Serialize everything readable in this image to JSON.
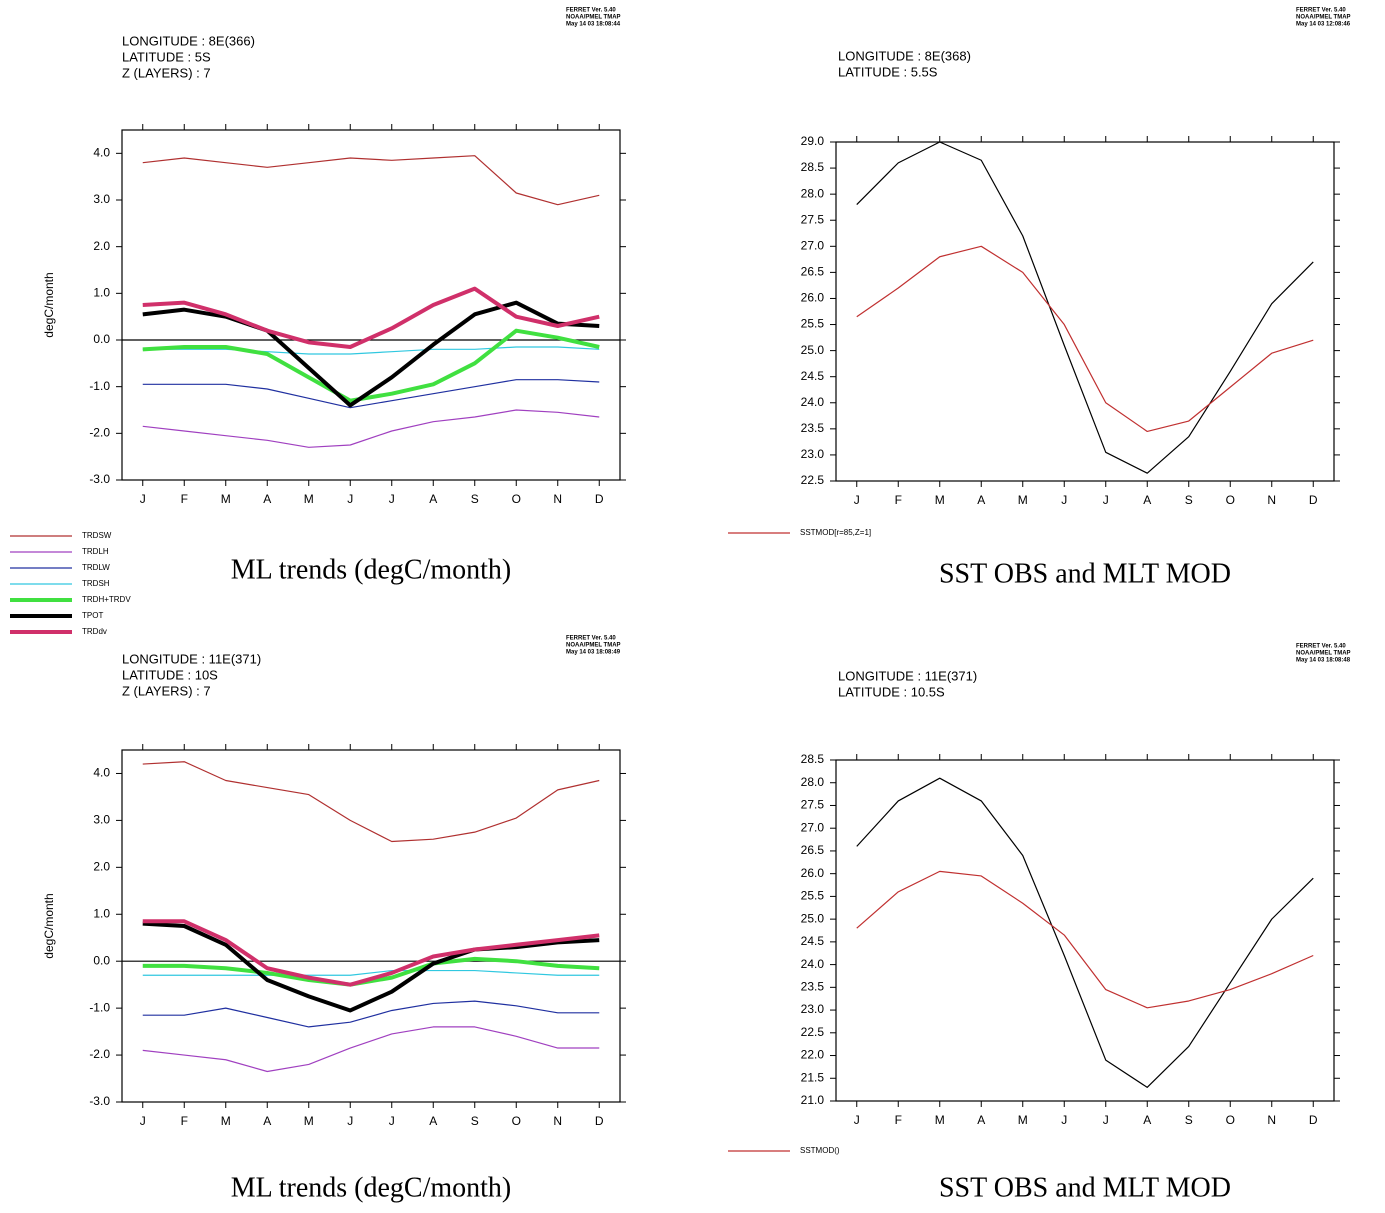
{
  "chart_data": [
    {
      "type": "line",
      "info": [
        "LONGITUDE : 8E(366)",
        "LATITUDE : 5S",
        "Z (LAYERS) : 7"
      ],
      "stamp": [
        "FERRET Ver. 5.40",
        "NOAA/PMEL TMAP",
        "May 14 03 18:08:44"
      ],
      "title": "ML trends (degC/month)",
      "y_label": "degC/month",
      "categories": [
        "J",
        "F",
        "M",
        "A",
        "M",
        "J",
        "J",
        "A",
        "S",
        "O",
        "N",
        "D"
      ],
      "ylim": [
        -3,
        4.5
      ],
      "yticks": [
        {
          "value": 4,
          "label": "4.0"
        },
        {
          "value": 3,
          "label": "3.0"
        },
        {
          "value": 2,
          "label": "2.0"
        },
        {
          "value": 1,
          "label": "1.0"
        },
        {
          "value": 0,
          "label": "0.0"
        },
        {
          "value": -1,
          "label": "-1.0"
        },
        {
          "value": -2,
          "label": "-2.0"
        },
        {
          "value": -3,
          "label": "-3.0"
        }
      ],
      "zero_line": true,
      "legend": "bottom-left",
      "series": [
        {
          "name": "TRDSW",
          "color": "#b03030",
          "line_width": 1.2,
          "values": [
            3.8,
            3.9,
            3.8,
            3.7,
            3.8,
            3.9,
            3.85,
            3.9,
            3.95,
            3.15,
            2.9,
            3.1
          ]
        },
        {
          "name": "TRDLH",
          "color": "#a040c0",
          "line_width": 1.2,
          "values": [
            -1.85,
            -1.95,
            -2.05,
            -2.15,
            -2.3,
            -2.25,
            -1.95,
            -1.75,
            -1.65,
            -1.5,
            -1.55,
            -1.65
          ]
        },
        {
          "name": "TRDLW",
          "color": "#2030a0",
          "line_width": 1.2,
          "values": [
            -0.95,
            -0.95,
            -0.95,
            -1.05,
            -1.25,
            -1.45,
            -1.3,
            -1.15,
            -1.0,
            -0.85,
            -0.85,
            -0.9
          ]
        },
        {
          "name": "TRDSH",
          "color": "#30c8e0",
          "line_width": 1.2,
          "values": [
            -0.2,
            -0.2,
            -0.2,
            -0.25,
            -0.3,
            -0.3,
            -0.25,
            -0.2,
            -0.2,
            -0.15,
            -0.15,
            -0.2
          ]
        },
        {
          "name": "TRDH+TRDV",
          "color": "#40e040",
          "line_width": 4,
          "values": [
            -0.2,
            -0.15,
            -0.15,
            -0.3,
            -0.8,
            -1.3,
            -1.15,
            -0.95,
            -0.5,
            0.2,
            0.05,
            -0.15
          ]
        },
        {
          "name": "TPOT",
          "color": "#000000",
          "line_width": 4,
          "values": [
            0.55,
            0.65,
            0.5,
            0.2,
            -0.6,
            -1.4,
            -0.8,
            -0.1,
            0.55,
            0.8,
            0.35,
            0.3
          ]
        },
        {
          "name": "TRDdv",
          "color": "#d0306a",
          "line_width": 4,
          "values": [
            0.75,
            0.8,
            0.55,
            0.2,
            -0.05,
            -0.15,
            0.25,
            0.75,
            1.1,
            0.5,
            0.3,
            0.5
          ]
        }
      ]
    },
    {
      "type": "line",
      "info": [
        "LONGITUDE : 8E(368)",
        "LATITUDE : 5.5S"
      ],
      "stamp": [
        "FERRET Ver. 5.40",
        "NOAA/PMEL TMAP",
        "May 14 03 12:08:46"
      ],
      "title": "SST OBS and MLT MOD",
      "categories": [
        "J",
        "F",
        "M",
        "A",
        "M",
        "J",
        "J",
        "A",
        "S",
        "O",
        "N",
        "D"
      ],
      "ylim": [
        22.5,
        29
      ],
      "yticks": [
        {
          "value": 29,
          "label": "29.0"
        },
        28.5,
        {
          "value": 28,
          "label": "28.0"
        },
        27.5,
        {
          "value": 27,
          "label": "27.0"
        },
        26.5,
        {
          "value": 26,
          "label": "26.0"
        },
        25.5,
        {
          "value": 25,
          "label": "25.0"
        },
        24.5,
        {
          "value": 24,
          "label": "24.0"
        },
        23.5,
        {
          "value": 23,
          "label": "23.0"
        },
        22.5
      ],
      "zero_line": false,
      "legend": "bottom-left",
      "series": [
        {
          "color": "#000000",
          "line_width": 1.2,
          "values": [
            27.8,
            28.6,
            29.0,
            28.65,
            27.2,
            25.1,
            23.05,
            22.65,
            23.35,
            24.6,
            25.9,
            26.7
          ]
        },
        {
          "name": "SSTMOD[r=85,Z=1]",
          "color": "#c03030",
          "line_width": 1.2,
          "values": [
            25.65,
            26.2,
            26.8,
            27.0,
            26.5,
            25.5,
            24.0,
            23.45,
            23.65,
            24.3,
            24.95,
            25.2
          ]
        }
      ]
    },
    {
      "type": "line",
      "info": [
        "LONGITUDE : 11E(371)",
        "LATITUDE : 10S",
        "Z (LAYERS) : 7"
      ],
      "stamp": [
        "FERRET Ver. 5.40",
        "NOAA/PMEL TMAP",
        "May 14 03 18:08:49"
      ],
      "title": "ML trends (degC/month)",
      "y_label": "degC/month",
      "categories": [
        "J",
        "F",
        "M",
        "A",
        "M",
        "J",
        "J",
        "A",
        "S",
        "O",
        "N",
        "D"
      ],
      "ylim": [
        -3,
        4.5
      ],
      "yticks": [
        {
          "value": 4,
          "label": "4.0"
        },
        {
          "value": 3,
          "label": "3.0"
        },
        {
          "value": 2,
          "label": "2.0"
        },
        {
          "value": 1,
          "label": "1.0"
        },
        {
          "value": 0,
          "label": "0.0"
        },
        {
          "value": -1,
          "label": "-1.0"
        },
        {
          "value": -2,
          "label": "-2.0"
        },
        {
          "value": -3,
          "label": "-3.0"
        }
      ],
      "zero_line": true,
      "series": [
        {
          "color": "#b03030",
          "line_width": 1.2,
          "values": [
            4.2,
            4.25,
            3.85,
            3.7,
            3.55,
            3.0,
            2.55,
            2.6,
            2.75,
            3.05,
            3.65,
            3.85
          ]
        },
        {
          "color": "#a040c0",
          "line_width": 1.2,
          "values": [
            -1.9,
            -2.0,
            -2.1,
            -2.35,
            -2.2,
            -1.85,
            -1.55,
            -1.4,
            -1.4,
            -1.6,
            -1.85,
            -1.85
          ]
        },
        {
          "color": "#2030a0",
          "line_width": 1.2,
          "values": [
            -1.15,
            -1.15,
            -1.0,
            -1.2,
            -1.4,
            -1.3,
            -1.05,
            -0.9,
            -0.85,
            -0.95,
            -1.1,
            -1.1
          ]
        },
        {
          "color": "#30c8e0",
          "line_width": 1.2,
          "values": [
            -0.3,
            -0.3,
            -0.3,
            -0.3,
            -0.3,
            -0.3,
            -0.2,
            -0.2,
            -0.2,
            -0.25,
            -0.3,
            -0.3
          ]
        },
        {
          "color": "#40e040",
          "line_width": 4,
          "values": [
            -0.1,
            -0.1,
            -0.15,
            -0.25,
            -0.4,
            -0.5,
            -0.35,
            -0.05,
            0.05,
            0.0,
            -0.1,
            -0.15
          ]
        },
        {
          "color": "#000000",
          "line_width": 4,
          "values": [
            0.8,
            0.75,
            0.35,
            -0.4,
            -0.75,
            -1.05,
            -0.65,
            -0.05,
            0.25,
            0.3,
            0.4,
            0.45
          ]
        },
        {
          "color": "#d0306a",
          "line_width": 4,
          "values": [
            0.85,
            0.85,
            0.45,
            -0.15,
            -0.35,
            -0.5,
            -0.25,
            0.1,
            0.25,
            0.35,
            0.45,
            0.55
          ]
        }
      ]
    },
    {
      "type": "line",
      "info": [
        "LONGITUDE : 11E(371)",
        "LATITUDE : 10.5S"
      ],
      "stamp": [
        "FERRET Ver. 5.40",
        "NOAA/PMEL TMAP",
        "May 14 03 18:08:48"
      ],
      "title": "SST OBS and MLT MOD",
      "categories": [
        "J",
        "F",
        "M",
        "A",
        "M",
        "J",
        "J",
        "A",
        "S",
        "O",
        "N",
        "D"
      ],
      "ylim": [
        21,
        28.5
      ],
      "yticks": [
        28.5,
        {
          "value": 28,
          "label": "28.0"
        },
        27.5,
        {
          "value": 27,
          "label": "27.0"
        },
        26.5,
        {
          "value": 26,
          "label": "26.0"
        },
        25.5,
        {
          "value": 25,
          "label": "25.0"
        },
        24.5,
        {
          "value": 24,
          "label": "24.0"
        },
        23.5,
        {
          "value": 23,
          "label": "23.0"
        },
        22.5,
        {
          "value": 22,
          "label": "22.0"
        },
        21.5,
        {
          "value": 21,
          "label": "21.0"
        }
      ],
      "zero_line": false,
      "legend": "bottom-left",
      "series": [
        {
          "color": "#000000",
          "line_width": 1.2,
          "values": [
            26.6,
            27.6,
            28.1,
            27.6,
            26.4,
            24.2,
            21.9,
            21.3,
            22.2,
            23.6,
            25.0,
            25.9
          ]
        },
        {
          "name": "SSTMOD()",
          "color": "#c03030",
          "line_width": 1.2,
          "values": [
            24.8,
            25.6,
            26.05,
            25.95,
            25.35,
            24.65,
            23.45,
            23.05,
            23.2,
            23.45,
            23.8,
            24.2
          ]
        }
      ]
    }
  ]
}
